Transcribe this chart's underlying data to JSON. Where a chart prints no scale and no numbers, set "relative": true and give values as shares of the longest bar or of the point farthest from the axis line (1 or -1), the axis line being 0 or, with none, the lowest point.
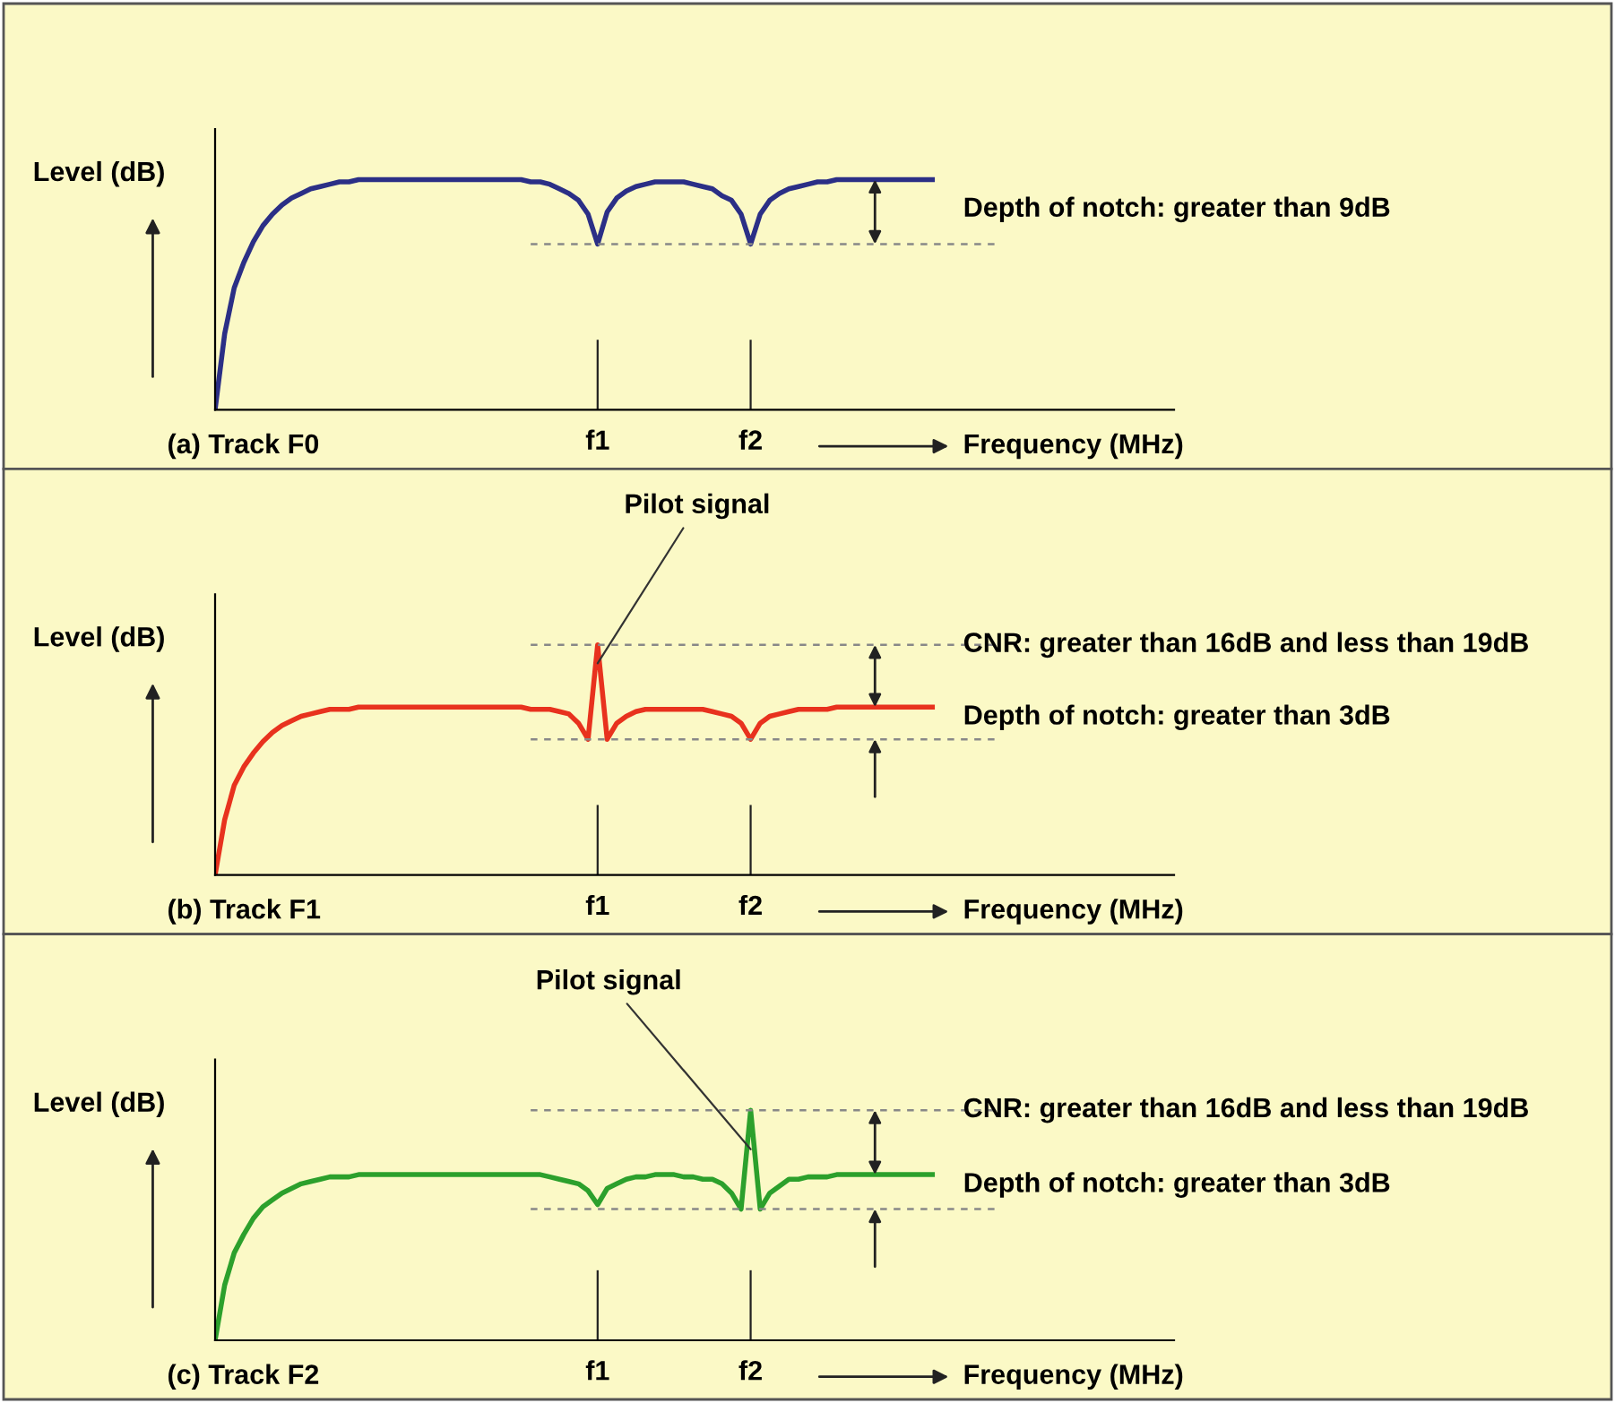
{
  "chart_data": [
    {
      "type": "line",
      "relative": true,
      "title": "(a) Track F0",
      "xlabel": "Frequency (MHz)",
      "ylabel": "Level (dB)",
      "categories": [
        null,
        null,
        null,
        null,
        null,
        null,
        null,
        null,
        null,
        null,
        null,
        null,
        null,
        null,
        null,
        null,
        null,
        null,
        null,
        null,
        null,
        null,
        null,
        null,
        null,
        null,
        null,
        null,
        null,
        null,
        null,
        null,
        null,
        null,
        null,
        null,
        null,
        null,
        null,
        null,
        "f1",
        null,
        null,
        null,
        null,
        null,
        null,
        null,
        null,
        null,
        null,
        null,
        null,
        null,
        null,
        null,
        "f2",
        null,
        null,
        null,
        null,
        null,
        null,
        null,
        null,
        null,
        null,
        null,
        null,
        null,
        null,
        null,
        null,
        null,
        null,
        null
      ],
      "series": [
        {
          "color": "#2b2f86",
          "values": [
            0,
            0.33,
            0.53,
            0.64,
            0.73,
            0.8,
            0.85,
            0.89,
            0.92,
            0.94,
            0.96,
            0.97,
            0.98,
            0.99,
            0.99,
            1,
            1,
            1,
            1,
            1,
            1,
            1,
            1,
            1,
            1,
            1,
            1,
            1,
            1,
            1,
            1,
            1,
            1,
            0.99,
            0.99,
            0.98,
            0.96,
            0.94,
            0.91,
            0.85,
            0.72,
            0.86,
            0.92,
            0.95,
            0.97,
            0.98,
            0.99,
            0.99,
            0.99,
            0.99,
            0.98,
            0.97,
            0.96,
            0.93,
            0.91,
            0.85,
            0.72,
            0.85,
            0.91,
            0.94,
            0.96,
            0.97,
            0.98,
            0.99,
            0.99,
            1,
            1,
            1,
            1,
            1,
            1,
            1,
            1,
            1,
            1,
            1
          ]
        }
      ],
      "ref_lines": [
        {
          "axis": "y",
          "value": 0.72,
          "color": "#888888",
          "line_style": "dashed"
        }
      ],
      "annotations": [
        "Depth of notch: greater than 9dB"
      ]
    },
    {
      "type": "line",
      "relative": true,
      "title": "(b) Track F1",
      "xlabel": "Frequency (MHz)",
      "ylabel": "Level (dB)",
      "categories": [
        null,
        null,
        null,
        null,
        null,
        null,
        null,
        null,
        null,
        null,
        null,
        null,
        null,
        null,
        null,
        null,
        null,
        null,
        null,
        null,
        null,
        null,
        null,
        null,
        null,
        null,
        null,
        null,
        null,
        null,
        null,
        null,
        null,
        null,
        null,
        null,
        null,
        null,
        null,
        null,
        "f1",
        null,
        null,
        null,
        null,
        null,
        null,
        null,
        null,
        null,
        null,
        null,
        null,
        null,
        null,
        null,
        "f2",
        null,
        null,
        null,
        null,
        null,
        null,
        null,
        null,
        null,
        null,
        null,
        null,
        null,
        null,
        null,
        null,
        null,
        null,
        null
      ],
      "series": [
        {
          "color": "#e8321e",
          "values": [
            0,
            0.24,
            0.39,
            0.47,
            0.53,
            0.58,
            0.62,
            0.65,
            0.67,
            0.69,
            0.7,
            0.71,
            0.72,
            0.72,
            0.72,
            0.73,
            0.73,
            0.73,
            0.73,
            0.73,
            0.73,
            0.73,
            0.73,
            0.73,
            0.73,
            0.73,
            0.73,
            0.73,
            0.73,
            0.73,
            0.73,
            0.73,
            0.73,
            0.72,
            0.72,
            0.72,
            0.71,
            0.7,
            0.66,
            0.59,
            1,
            0.59,
            0.66,
            0.69,
            0.71,
            0.72,
            0.72,
            0.72,
            0.72,
            0.72,
            0.72,
            0.72,
            0.71,
            0.7,
            0.69,
            0.66,
            0.59,
            0.66,
            0.69,
            0.7,
            0.71,
            0.72,
            0.72,
            0.72,
            0.72,
            0.73,
            0.73,
            0.73,
            0.73,
            0.73,
            0.73,
            0.73,
            0.73,
            0.73,
            0.73,
            0.73
          ]
        }
      ],
      "ref_lines": [
        {
          "axis": "y",
          "value": 1,
          "color": "#888888",
          "line_style": "dashed"
        },
        {
          "axis": "y",
          "value": 0.59,
          "color": "#888888",
          "line_style": "dashed"
        }
      ],
      "annotations": [
        {
          "text": "Pilot signal",
          "x": "f1",
          "y": 0.92
        },
        "CNR: greater than 16dB and less than 19dB",
        "Depth of notch: greater than 3dB"
      ]
    },
    {
      "type": "line",
      "relative": true,
      "title": "(c) Track F2",
      "xlabel": "Frequency (MHz)",
      "ylabel": "Level (dB)",
      "categories": [
        null,
        null,
        null,
        null,
        null,
        null,
        null,
        null,
        null,
        null,
        null,
        null,
        null,
        null,
        null,
        null,
        null,
        null,
        null,
        null,
        null,
        null,
        null,
        null,
        null,
        null,
        null,
        null,
        null,
        null,
        null,
        null,
        null,
        null,
        null,
        null,
        null,
        null,
        null,
        null,
        "f1",
        null,
        null,
        null,
        null,
        null,
        null,
        null,
        null,
        null,
        null,
        null,
        null,
        null,
        null,
        null,
        "f2",
        null,
        null,
        null,
        null,
        null,
        null,
        null,
        null,
        null,
        null,
        null,
        null,
        null,
        null,
        null,
        null,
        null,
        null,
        null
      ],
      "series": [
        {
          "color": "#2ca02c",
          "values": [
            0,
            0.24,
            0.38,
            0.46,
            0.53,
            0.58,
            0.61,
            0.64,
            0.66,
            0.68,
            0.69,
            0.7,
            0.71,
            0.71,
            0.71,
            0.72,
            0.72,
            0.72,
            0.72,
            0.72,
            0.72,
            0.72,
            0.72,
            0.72,
            0.72,
            0.72,
            0.72,
            0.72,
            0.72,
            0.72,
            0.72,
            0.72,
            0.72,
            0.72,
            0.72,
            0.71,
            0.7,
            0.69,
            0.68,
            0.65,
            0.59,
            0.66,
            0.68,
            0.7,
            0.71,
            0.71,
            0.72,
            0.72,
            0.72,
            0.71,
            0.71,
            0.7,
            0.7,
            0.68,
            0.64,
            0.57,
            1,
            0.57,
            0.64,
            0.67,
            0.7,
            0.7,
            0.71,
            0.71,
            0.71,
            0.72,
            0.72,
            0.72,
            0.72,
            0.72,
            0.72,
            0.72,
            0.72,
            0.72,
            0.72,
            0.72
          ]
        }
      ],
      "ref_lines": [
        {
          "axis": "y",
          "value": 1,
          "color": "#888888",
          "line_style": "dashed"
        },
        {
          "axis": "y",
          "value": 0.57,
          "color": "#888888",
          "line_style": "dashed"
        }
      ],
      "annotations": [
        {
          "text": "Pilot signal",
          "x": "f2",
          "y": 0.83
        },
        "CNR: greater than 16dB and less than 19dB",
        "Depth of notch: greater than 3dB"
      ]
    }
  ]
}
